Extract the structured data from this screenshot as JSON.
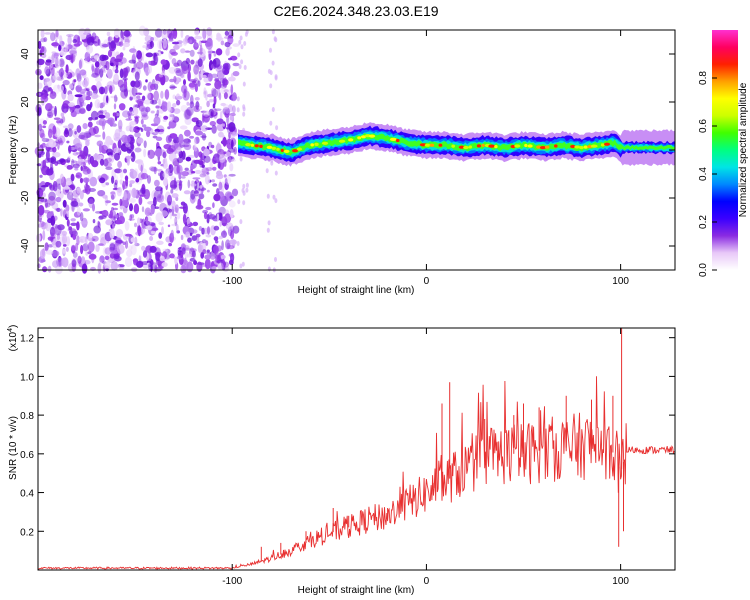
{
  "title": "C2E6.2024.348.23.03.E19",
  "chart_data": [
    {
      "type": "heatmap",
      "xlabel": "Height of straight line (km)",
      "ylabel": "Frequency (Hz)",
      "xlim": [
        -200,
        128
      ],
      "ylim": [
        -50,
        50
      ],
      "xticks": [
        -100,
        0,
        100
      ],
      "yticks": [
        -40,
        -20,
        0,
        20,
        40
      ],
      "grid": false,
      "colorbar": {
        "label": "Normalized spectral amplitude",
        "range": [
          0,
          1
        ],
        "ticks": [
          "0.0",
          "0.2",
          "0.4",
          "0.6",
          "0.8"
        ],
        "colors": [
          "#ffffff",
          "#e8c8f8",
          "#8a2be2",
          "#3a00ff",
          "#0000ff",
          "#0088ff",
          "#00e5e5",
          "#00ff80",
          "#40ff00",
          "#ccff00",
          "#ffff00",
          "#ffa000",
          "#ff2000",
          "#ff0060",
          "#ff30d0"
        ]
      },
      "ridge": {
        "description_x_km": [
          -97,
          -90,
          -80,
          -70,
          -60,
          -50,
          -40,
          -30,
          -20,
          -10,
          0,
          10,
          20,
          30,
          40,
          50,
          60,
          70,
          80,
          90,
          97,
          100,
          128
        ],
        "freq_hz": [
          3,
          2,
          1,
          -1,
          2,
          3,
          4,
          6,
          5,
          3,
          2,
          2,
          1,
          2,
          1,
          2,
          1,
          2,
          1,
          2,
          3,
          1,
          1
        ]
      }
    },
    {
      "type": "line",
      "xlabel": "Height of straight line (km)",
      "ylabel": "SNR (10 * v/v)",
      "y_multiplier": "(x10",
      "y_multiplier_exp": "4",
      "xlim": [
        -200,
        128
      ],
      "ylim": [
        0,
        1.25
      ],
      "xticks": [
        -100,
        0,
        100
      ],
      "yticks": [
        0.2,
        0.4,
        0.6,
        0.8,
        1.0,
        1.2
      ],
      "grid": false,
      "series": [
        {
          "color": "#e83030",
          "envelope_x": [
            -200,
            -110,
            -100,
            -90,
            -80,
            -70,
            -60,
            -50,
            -40,
            -30,
            -20,
            -10,
            0,
            10,
            20,
            30,
            40,
            50,
            60,
            70,
            80,
            90,
            97,
            100,
            103,
            128
          ],
          "envelope_y": [
            0.01,
            0.01,
            0.01,
            0.03,
            0.06,
            0.1,
            0.15,
            0.19,
            0.22,
            0.26,
            0.28,
            0.34,
            0.4,
            0.46,
            0.52,
            0.58,
            0.6,
            0.6,
            0.62,
            0.63,
            0.64,
            0.65,
            0.6,
            0.5,
            0.62,
            0.62
          ],
          "spikes": [
            {
              "x": -85,
              "y": 0.12
            },
            {
              "x": -75,
              "y": 0.14
            },
            {
              "x": -62,
              "y": 0.2
            },
            {
              "x": -48,
              "y": 0.32
            },
            {
              "x": -40,
              "y": 0.28
            },
            {
              "x": -20,
              "y": 0.32
            },
            {
              "x": 4,
              "y": 0.45
            },
            {
              "x": 8,
              "y": 0.86
            },
            {
              "x": 12,
              "y": 0.97
            },
            {
              "x": 30,
              "y": 0.78
            },
            {
              "x": 45,
              "y": 0.8
            },
            {
              "x": 50,
              "y": 0.86
            },
            {
              "x": 58,
              "y": 0.84
            },
            {
              "x": 72,
              "y": 0.9
            },
            {
              "x": 85,
              "y": 0.88
            },
            {
              "x": 96,
              "y": 0.9
            },
            {
              "x": 99,
              "y": 0.12
            },
            {
              "x": 100.5,
              "y": 1.25
            },
            {
              "x": 101.5,
              "y": 0.2
            }
          ]
        }
      ]
    }
  ]
}
